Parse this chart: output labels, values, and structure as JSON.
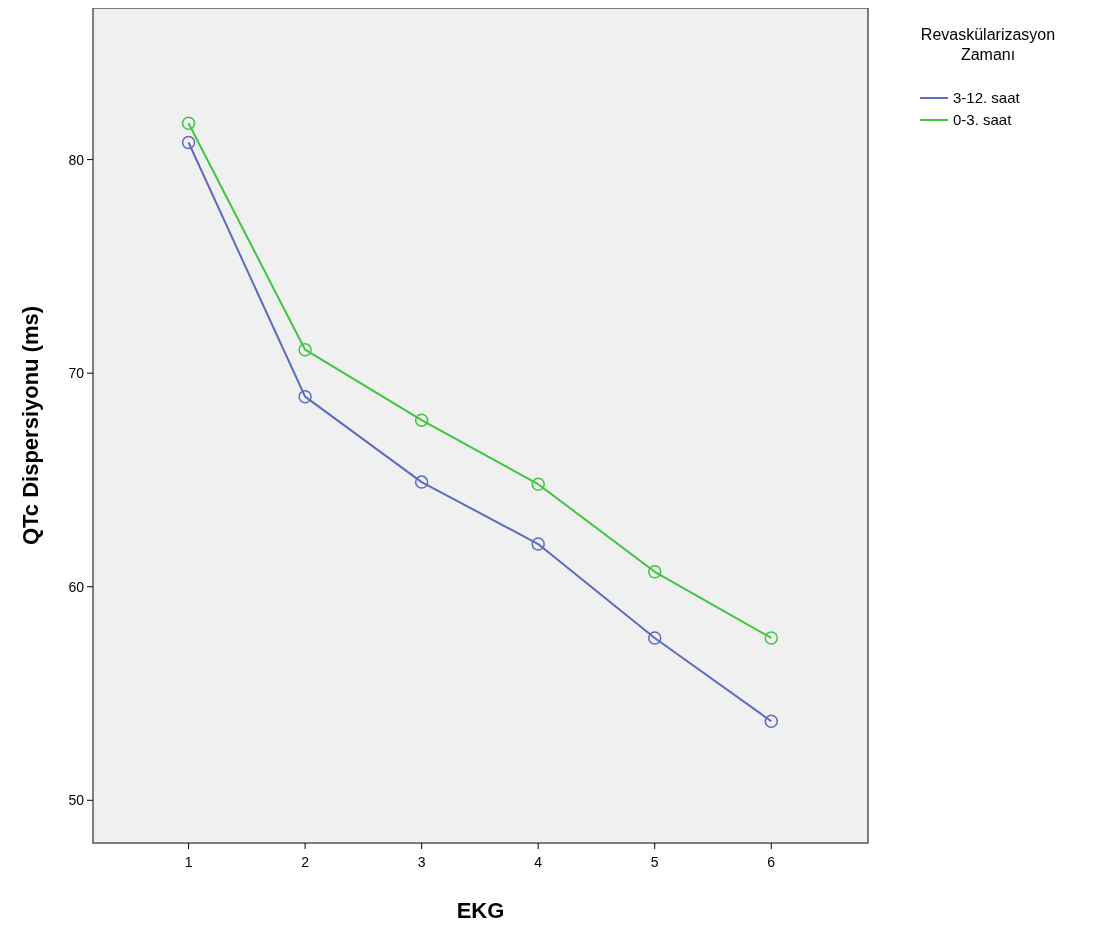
{
  "chart_data": {
    "type": "line",
    "xlabel": "EKG",
    "ylabel": "QTc Dispersiyonu (ms)",
    "legend_title": "Revaskülarizasyon Zamanı",
    "x": [
      1,
      2,
      3,
      4,
      5,
      6
    ],
    "xlim": [
      0.18,
      6.83
    ],
    "xticks": [
      1,
      2,
      3,
      4,
      5,
      6
    ],
    "ylim": [
      48.0,
      87.1
    ],
    "yticks": [
      50,
      60,
      70,
      80
    ],
    "grid": false,
    "legend": "top right",
    "marker": "circle",
    "line_style": "solid",
    "series": [
      {
        "name": "3-12. saat",
        "color": "#5c6bc0",
        "values": [
          80.8,
          68.9,
          64.9,
          62.0,
          57.6,
          53.7
        ]
      },
      {
        "name": "0-3. saat",
        "color": "#3fc63f",
        "values": [
          81.7,
          71.1,
          67.8,
          64.8,
          60.7,
          57.6
        ]
      }
    ]
  }
}
